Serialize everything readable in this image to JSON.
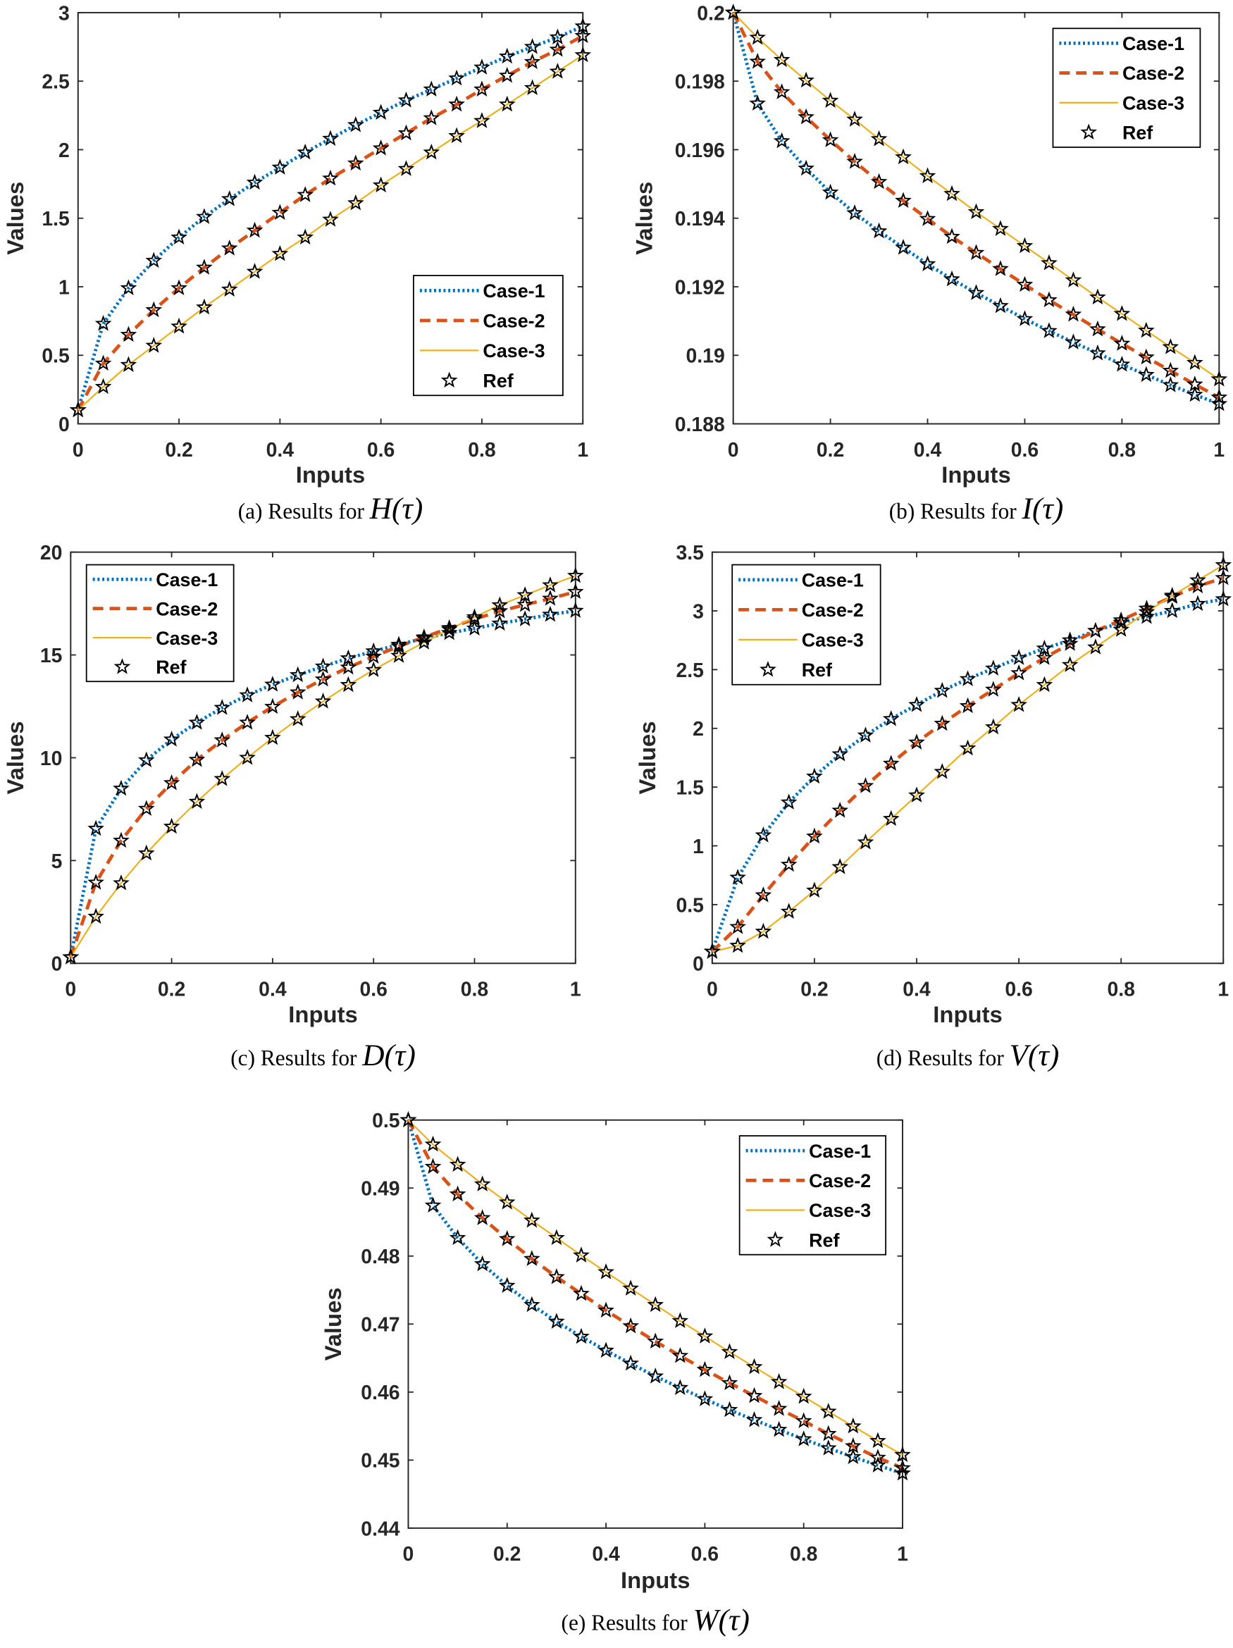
{
  "colors": {
    "case1": "#0072BD",
    "case2": "#D95319",
    "case3": "#EDB120",
    "ref": "#000000",
    "axis": "#262626"
  },
  "legend_labels": [
    "Case-1",
    "Case-2",
    "Case-3",
    "Ref"
  ],
  "chart_data": [
    {
      "id": "a",
      "type": "line",
      "caption_prefix": "(a) Results for ",
      "caption_fn": "H(τ)",
      "xlabel": "Inputs",
      "ylabel": "Values",
      "xlim": [
        0,
        1
      ],
      "ylim": [
        0,
        3
      ],
      "xticks": [
        0,
        0.2,
        0.4,
        0.6,
        0.8,
        1
      ],
      "xtick_labels": [
        "0",
        "0.2",
        "0.4",
        "0.6",
        "0.8",
        "1"
      ],
      "yticks": [
        0,
        0.5,
        1,
        1.5,
        2,
        2.5,
        3
      ],
      "ytick_labels": [
        "0",
        "0.5",
        "1",
        "1.5",
        "2",
        "2.5",
        "3"
      ],
      "legend_position": "bottom-right",
      "x": [
        0,
        0.05,
        0.1,
        0.15,
        0.2,
        0.25,
        0.3,
        0.35,
        0.4,
        0.45,
        0.5,
        0.55,
        0.6,
        0.65,
        0.7,
        0.75,
        0.8,
        0.85,
        0.9,
        0.95,
        1
      ],
      "series": [
        {
          "name": "Case-1",
          "values": [
            0.1,
            0.73,
            0.99,
            1.19,
            1.36,
            1.51,
            1.64,
            1.76,
            1.87,
            1.98,
            2.08,
            2.18,
            2.27,
            2.36,
            2.44,
            2.52,
            2.6,
            2.68,
            2.75,
            2.82,
            2.9
          ]
        },
        {
          "name": "Case-2",
          "values": [
            0.1,
            0.44,
            0.65,
            0.83,
            0.99,
            1.14,
            1.28,
            1.41,
            1.54,
            1.67,
            1.79,
            1.9,
            2.01,
            2.12,
            2.23,
            2.33,
            2.44,
            2.54,
            2.64,
            2.73,
            2.83
          ]
        },
        {
          "name": "Case-3",
          "values": [
            0.1,
            0.27,
            0.43,
            0.57,
            0.71,
            0.85,
            0.98,
            1.11,
            1.24,
            1.36,
            1.49,
            1.61,
            1.74,
            1.86,
            1.98,
            2.1,
            2.21,
            2.33,
            2.45,
            2.57,
            2.69
          ]
        }
      ]
    },
    {
      "id": "b",
      "type": "line",
      "caption_prefix": "(b) Results for ",
      "caption_fn": "I(τ)",
      "xlabel": "Inputs",
      "ylabel": "Values",
      "xlim": [
        0,
        1
      ],
      "ylim": [
        0.188,
        0.2
      ],
      "xticks": [
        0,
        0.2,
        0.4,
        0.6,
        0.8,
        1
      ],
      "xtick_labels": [
        "0",
        "0.2",
        "0.4",
        "0.6",
        "0.8",
        "1"
      ],
      "yticks": [
        0.188,
        0.19,
        0.192,
        0.194,
        0.196,
        0.198,
        0.2
      ],
      "ytick_labels": [
        "0.188",
        "0.19",
        "0.192",
        "0.194",
        "0.196",
        "0.198",
        "0.2"
      ],
      "legend_position": "top-right",
      "x": [
        0,
        0.05,
        0.1,
        0.15,
        0.2,
        0.25,
        0.3,
        0.35,
        0.4,
        0.45,
        0.5,
        0.55,
        0.6,
        0.65,
        0.7,
        0.75,
        0.8,
        0.85,
        0.9,
        0.95,
        1
      ],
      "series": [
        {
          "name": "Case-1",
          "values": [
            0.2,
            0.19735,
            0.19625,
            0.19545,
            0.19475,
            0.19415,
            0.19362,
            0.19314,
            0.19266,
            0.19222,
            0.19182,
            0.19144,
            0.19106,
            0.19071,
            0.19038,
            0.19006,
            0.18973,
            0.18943,
            0.18913,
            0.18885,
            0.18858
          ]
        },
        {
          "name": "Case-2",
          "values": [
            0.2,
            0.19857,
            0.19768,
            0.19695,
            0.19628,
            0.19565,
            0.19506,
            0.19451,
            0.19398,
            0.19346,
            0.19299,
            0.19252,
            0.19206,
            0.19161,
            0.19119,
            0.19076,
            0.19034,
            0.18994,
            0.18955,
            0.18915,
            0.18877
          ]
        },
        {
          "name": "Case-3",
          "values": [
            0.2,
            0.19927,
            0.19862,
            0.19802,
            0.19743,
            0.19688,
            0.19631,
            0.19578,
            0.19523,
            0.19471,
            0.19418,
            0.19369,
            0.19319,
            0.19269,
            0.19219,
            0.19169,
            0.19121,
            0.19072,
            0.19024,
            0.18978,
            0.1893
          ]
        }
      ]
    },
    {
      "id": "c",
      "type": "line",
      "caption_prefix": "(c) Results for ",
      "caption_fn": "D(τ)",
      "xlabel": "Inputs",
      "ylabel": "Values",
      "xlim": [
        0,
        1
      ],
      "ylim": [
        0,
        20
      ],
      "xticks": [
        0,
        0.2,
        0.4,
        0.6,
        0.8,
        1
      ],
      "xtick_labels": [
        "0",
        "0.2",
        "0.4",
        "0.6",
        "0.8",
        "1"
      ],
      "yticks": [
        0,
        5,
        10,
        15,
        20
      ],
      "ytick_labels": [
        "0",
        "5",
        "10",
        "15",
        "20"
      ],
      "legend_position": "top-left",
      "x": [
        0,
        0.05,
        0.1,
        0.15,
        0.2,
        0.25,
        0.3,
        0.35,
        0.4,
        0.45,
        0.5,
        0.55,
        0.6,
        0.65,
        0.7,
        0.75,
        0.8,
        0.85,
        0.9,
        0.95,
        1
      ],
      "series": [
        {
          "name": "Case-1",
          "values": [
            0.3,
            6.55,
            8.5,
            9.88,
            10.89,
            11.71,
            12.43,
            13.04,
            13.56,
            14.02,
            14.44,
            14.84,
            15.18,
            15.5,
            15.81,
            16.07,
            16.29,
            16.53,
            16.74,
            16.96,
            17.15
          ]
        },
        {
          "name": "Case-2",
          "values": [
            0.3,
            3.93,
            5.97,
            7.52,
            8.77,
            9.9,
            10.85,
            11.71,
            12.48,
            13.18,
            13.81,
            14.39,
            14.92,
            15.42,
            15.86,
            16.31,
            16.74,
            17.13,
            17.44,
            17.74,
            18.07
          ]
        },
        {
          "name": "Case-3",
          "values": [
            0.3,
            2.27,
            3.9,
            5.35,
            6.65,
            7.86,
            8.97,
            10.0,
            10.97,
            11.88,
            12.74,
            13.54,
            14.27,
            14.96,
            15.61,
            16.24,
            16.84,
            17.42,
            17.91,
            18.39,
            18.85
          ]
        }
      ]
    },
    {
      "id": "d",
      "type": "line",
      "caption_prefix": "(d) Results for ",
      "caption_fn": "V(τ)",
      "xlabel": "Inputs",
      "ylabel": "Values",
      "xlim": [
        0,
        1
      ],
      "ylim": [
        0,
        3.5
      ],
      "xticks": [
        0,
        0.2,
        0.4,
        0.6,
        0.8,
        1
      ],
      "xtick_labels": [
        "0",
        "0.2",
        "0.4",
        "0.6",
        "0.8",
        "1"
      ],
      "yticks": [
        0,
        0.5,
        1,
        1.5,
        2,
        2.5,
        3,
        3.5
      ],
      "ytick_labels": [
        "0",
        "0.5",
        "1",
        "1.5",
        "2",
        "2.5",
        "3",
        "3.5"
      ],
      "legend_position": "top-left",
      "x": [
        0,
        0.05,
        0.1,
        0.15,
        0.2,
        0.25,
        0.3,
        0.35,
        0.4,
        0.45,
        0.5,
        0.55,
        0.6,
        0.65,
        0.7,
        0.75,
        0.8,
        0.85,
        0.9,
        0.95,
        1
      ],
      "series": [
        {
          "name": "Case-1",
          "values": [
            0.1,
            0.73,
            1.09,
            1.37,
            1.59,
            1.78,
            1.94,
            2.08,
            2.2,
            2.32,
            2.42,
            2.51,
            2.6,
            2.68,
            2.75,
            2.83,
            2.9,
            2.95,
            3.0,
            3.06,
            3.1
          ]
        },
        {
          "name": "Case-2",
          "values": [
            0.1,
            0.31,
            0.58,
            0.84,
            1.08,
            1.3,
            1.51,
            1.7,
            1.88,
            2.04,
            2.19,
            2.33,
            2.47,
            2.6,
            2.72,
            2.83,
            2.92,
            3.02,
            3.12,
            3.21,
            3.28
          ]
        },
        {
          "name": "Case-3",
          "values": [
            0.1,
            0.15,
            0.27,
            0.44,
            0.62,
            0.82,
            1.03,
            1.23,
            1.43,
            1.63,
            1.83,
            2.01,
            2.2,
            2.37,
            2.54,
            2.69,
            2.84,
            2.99,
            3.13,
            3.26,
            3.39
          ]
        }
      ]
    },
    {
      "id": "e",
      "type": "line",
      "caption_prefix": "(e) Results for ",
      "caption_fn": "W(τ)",
      "xlabel": "Inputs",
      "ylabel": "Values",
      "xlim": [
        0,
        1
      ],
      "ylim": [
        0.44,
        0.5
      ],
      "xticks": [
        0,
        0.2,
        0.4,
        0.6,
        0.8,
        1
      ],
      "xtick_labels": [
        "0",
        "0.2",
        "0.4",
        "0.6",
        "0.8",
        "1"
      ],
      "yticks": [
        0.44,
        0.45,
        0.46,
        0.47,
        0.48,
        0.49,
        0.5
      ],
      "ytick_labels": [
        "0.44",
        "0.45",
        "0.46",
        "0.47",
        "0.48",
        "0.49",
        "0.5"
      ],
      "legend_position": "top-right",
      "x": [
        0,
        0.05,
        0.1,
        0.15,
        0.2,
        0.25,
        0.3,
        0.35,
        0.4,
        0.45,
        0.5,
        0.55,
        0.6,
        0.65,
        0.7,
        0.75,
        0.8,
        0.85,
        0.9,
        0.95,
        1
      ],
      "series": [
        {
          "name": "Case-1",
          "values": [
            0.5,
            0.48744,
            0.48267,
            0.47882,
            0.47564,
            0.47282,
            0.47036,
            0.46815,
            0.4661,
            0.4642,
            0.46231,
            0.46062,
            0.45897,
            0.45738,
            0.4559,
            0.45446,
            0.45308,
            0.45174,
            0.45046,
            0.44923,
            0.44805
          ]
        },
        {
          "name": "Case-2",
          "values": [
            0.5,
            0.49313,
            0.48908,
            0.48559,
            0.48251,
            0.47959,
            0.47692,
            0.47446,
            0.472,
            0.46969,
            0.46744,
            0.46533,
            0.46328,
            0.46133,
            0.45944,
            0.45754,
            0.45574,
            0.45385,
            0.45205,
            0.45036,
            0.44882
          ]
        },
        {
          "name": "Case-3",
          "values": [
            0.5,
            0.49641,
            0.49344,
            0.49056,
            0.4879,
            0.48523,
            0.48267,
            0.4801,
            0.47764,
            0.47523,
            0.47282,
            0.47046,
            0.4682,
            0.4659,
            0.46369,
            0.46149,
            0.45933,
            0.45713,
            0.45497,
            0.45282,
            0.45077
          ]
        }
      ]
    }
  ]
}
